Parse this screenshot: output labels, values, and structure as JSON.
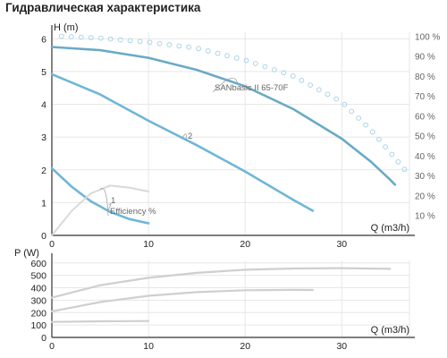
{
  "page": {
    "title": "Гидравлическая характеристика"
  },
  "chart_data": [
    {
      "type": "line",
      "name": "head-chart",
      "ylabel": "H (m)",
      "xlabel": "Q (m3/h)",
      "xlim": [
        0,
        37
      ],
      "ylim": [
        0,
        6.2
      ],
      "x_ticks": [
        0,
        10,
        20,
        30
      ],
      "y_ticks": [
        0,
        1,
        2,
        3,
        4,
        5,
        6
      ],
      "right_axis": {
        "ticks": [
          10,
          20,
          30,
          40,
          50,
          60,
          70,
          80,
          90,
          100
        ],
        "unit": "%",
        "ylim": [
          0,
          102
        ]
      },
      "grid": true,
      "series": [
        {
          "name": "SANbasic II 65-70F",
          "color": "#6aaac6",
          "points": [
            [
              0,
              5.75
            ],
            [
              5,
              5.65
            ],
            [
              10,
              5.42
            ],
            [
              15,
              5.05
            ],
            [
              20,
              4.55
            ],
            [
              25,
              3.85
            ],
            [
              30,
              2.95
            ],
            [
              33,
              2.25
            ],
            [
              35,
              1.7
            ],
            [
              35.5,
              1.55
            ]
          ]
        },
        {
          "name": "2",
          "color": "#6fb6d7",
          "points": [
            [
              0,
              4.92
            ],
            [
              5,
              4.3
            ],
            [
              10,
              3.5
            ],
            [
              15,
              2.75
            ],
            [
              20,
              1.95
            ],
            [
              25,
              1.08
            ],
            [
              27,
              0.75
            ]
          ]
        },
        {
          "name": "1",
          "color": "#6fb6d7",
          "points": [
            [
              0,
              2.05
            ],
            [
              2,
              1.5
            ],
            [
              4,
              1.05
            ],
            [
              6,
              0.72
            ],
            [
              8,
              0.5
            ],
            [
              10,
              0.37
            ]
          ]
        },
        {
          "name": "Efficiency %",
          "color": "#d9d9d9",
          "axis": "right",
          "points": [
            [
              0,
              0
            ],
            [
              2,
              12
            ],
            [
              4,
              21
            ],
            [
              6,
              25
            ],
            [
              8,
              24
            ],
            [
              10,
              22
            ]
          ]
        },
        {
          "name": "",
          "color": "#aad4ea",
          "style": "dotted",
          "axis": "right",
          "points": [
            [
              1,
              100
            ],
            [
              5,
              99
            ],
            [
              10,
              97
            ],
            [
              15,
              94
            ],
            [
              20,
              88
            ],
            [
              25,
              80
            ],
            [
              30,
              67
            ],
            [
              33,
              53
            ],
            [
              36,
              36
            ],
            [
              37,
              30
            ]
          ]
        }
      ]
    },
    {
      "type": "line",
      "name": "power-chart",
      "ylabel": "P (W)",
      "xlabel": "Q (m3/h)",
      "xlim": [
        0,
        37
      ],
      "ylim": [
        0,
        620
      ],
      "x_ticks": [
        0,
        10,
        20,
        30
      ],
      "y_ticks": [
        0,
        100,
        200,
        300,
        400,
        500,
        600
      ],
      "grid": true,
      "series": [
        {
          "name": "",
          "color": "#cfcfcf",
          "points": [
            [
              0,
              320
            ],
            [
              5,
              420
            ],
            [
              10,
              480
            ],
            [
              15,
              520
            ],
            [
              20,
              545
            ],
            [
              25,
              555
            ],
            [
              30,
              558
            ],
            [
              35,
              552
            ]
          ]
        },
        {
          "name": "",
          "color": "#cfcfcf",
          "points": [
            [
              0,
              210
            ],
            [
              5,
              285
            ],
            [
              10,
              335
            ],
            [
              15,
              365
            ],
            [
              20,
              380
            ],
            [
              25,
              383
            ],
            [
              27,
              382
            ]
          ]
        },
        {
          "name": "",
          "color": "#cfcfcf",
          "points": [
            [
              0,
              125
            ],
            [
              5,
              130
            ],
            [
              10,
              132
            ]
          ]
        }
      ]
    }
  ],
  "colors": {
    "grid": "#e7e7e7",
    "axis": "#333333",
    "pump_curve": "#6aaac6",
    "efficiency": "#aad4ea",
    "power": "#cfcfcf"
  }
}
